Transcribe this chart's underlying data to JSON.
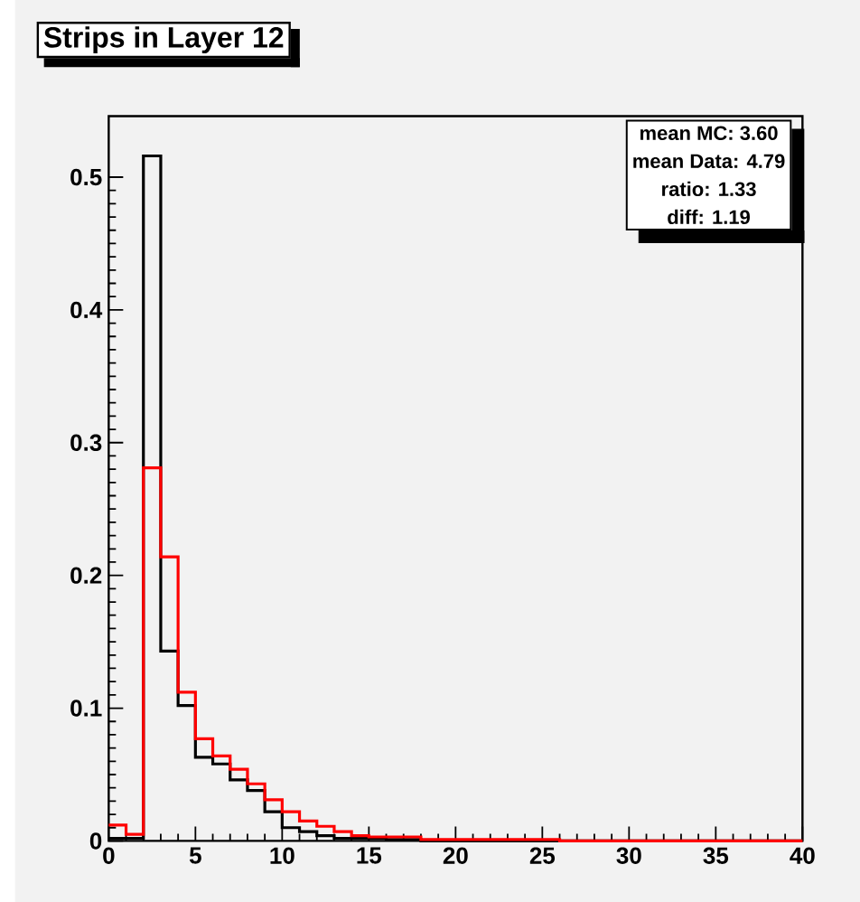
{
  "chart_data": {
    "type": "histogram",
    "title": "Strips in Layer 12",
    "bins": [
      0,
      1,
      2,
      3,
      4,
      5,
      6,
      7,
      8,
      9,
      10,
      11,
      12,
      13,
      14,
      15,
      16,
      17,
      18,
      19,
      20,
      21,
      22,
      23,
      24,
      25,
      26,
      27,
      28,
      29,
      30,
      31,
      32,
      33,
      34,
      35,
      36,
      37,
      38,
      39,
      40
    ],
    "series": [
      {
        "color": "#000000",
        "values": [
          0.002,
          0.002,
          0.516,
          0.143,
          0.102,
          0.063,
          0.058,
          0.046,
          0.038,
          0.022,
          0.01,
          0.007,
          0.004,
          0.002,
          0.002,
          0.002,
          0.001,
          0.001,
          0,
          0,
          0,
          0,
          0,
          0,
          0,
          0,
          0,
          0,
          0,
          0,
          0,
          0,
          0,
          0,
          0,
          0,
          0,
          0,
          0,
          0
        ]
      },
      {
        "color": "#ff0000",
        "values": [
          0.012,
          0.005,
          0.281,
          0.214,
          0.112,
          0.077,
          0.064,
          0.054,
          0.043,
          0.031,
          0.022,
          0.015,
          0.011,
          0.007,
          0.004,
          0.003,
          0.003,
          0.003,
          0.001,
          0.001,
          0.001,
          0.001,
          0.001,
          0.001,
          0.001,
          0.001,
          0,
          0,
          0,
          0,
          0,
          0,
          0,
          0,
          0,
          0,
          0,
          0,
          0,
          0
        ]
      }
    ],
    "xlim": [
      0,
      40
    ],
    "xticks": [
      0,
      5,
      10,
      15,
      20,
      25,
      30,
      35,
      40
    ],
    "ylim": [
      0,
      0.546
    ],
    "yticks": [
      0,
      0.1,
      0.2,
      0.3,
      0.4,
      0.5
    ],
    "annotations": [
      "mean MC: 3.60",
      "mean Data: 4.79",
      "ratio: 1.33",
      "diff: 1.19"
    ]
  }
}
